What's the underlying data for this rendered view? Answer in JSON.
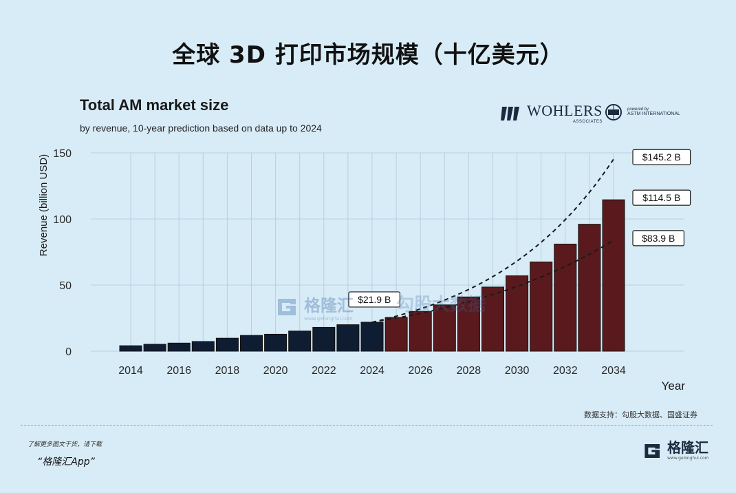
{
  "header": {
    "main_title": "全球 3D 打印市场规模（十亿美元）",
    "chart_title": "Total AM market size",
    "chart_subtitle": "by revenue, 10-year prediction based on data up to 2024"
  },
  "logos": {
    "wohlers_name": "WOHLERS",
    "wohlers_sub": "ASSOCIATES",
    "astm_powered": "powered by",
    "astm_name": "ASTM INTERNATIONAL"
  },
  "watermark": {
    "text": "格隆汇",
    "url": "www.gelonghui.com",
    "text2": "勾股大数据"
  },
  "source_text": "数据支持：勾股大数据、国盛证券",
  "footer": {
    "note": "了解更多图文干货，请下载",
    "app": "“格隆汇App”",
    "logo_name": "格隆汇",
    "logo_url": "www.gelonghui.com"
  },
  "colors": {
    "historical_bar": "#0f1d33",
    "forecast_bar": "#5a1a1d",
    "grid": "#b9cfdc",
    "background": "#d8ecf7"
  },
  "chart_data": {
    "type": "bar",
    "ylabel": "Revenue (billion USD)",
    "xlabel": "Year",
    "ylim": [
      0,
      150
    ],
    "yticks": [
      0,
      50,
      100,
      150
    ],
    "xticks": [
      "2014",
      "2016",
      "2018",
      "2020",
      "2022",
      "2024",
      "2026",
      "2028",
      "2030",
      "2032",
      "2034"
    ],
    "grid": true,
    "categories": [
      "2014",
      "2015",
      "2016",
      "2017",
      "2018",
      "2019",
      "2020",
      "2021",
      "2022",
      "2023",
      "2024",
      "2025",
      "2026",
      "2027",
      "2028",
      "2029",
      "2030",
      "2031",
      "2032",
      "2033",
      "2034"
    ],
    "series": [
      {
        "kind": "historical",
        "values": [
          4.1,
          5.2,
          6.1,
          7.3,
          9.8,
          11.9,
          12.8,
          15.2,
          18.0,
          20.0,
          21.9,
          null,
          null,
          null,
          null,
          null,
          null,
          null,
          null,
          null,
          null
        ]
      },
      {
        "kind": "forecast",
        "values": [
          null,
          null,
          null,
          null,
          null,
          null,
          null,
          null,
          null,
          null,
          null,
          25.5,
          30.0,
          35.0,
          41.0,
          48.5,
          57.0,
          67.5,
          81.0,
          96.0,
          114.5
        ]
      }
    ],
    "trend_lines": [
      {
        "kind": "upper",
        "from": [
          2024,
          21.9
        ],
        "to": [
          2034,
          145.2
        ]
      },
      {
        "kind": "lower",
        "from": [
          2024,
          21.9
        ],
        "to": [
          2034,
          83.9
        ]
      }
    ],
    "annotations": [
      {
        "text": "$21.9 B",
        "year": 2024,
        "value": 21.9
      },
      {
        "text": "$145.2 B",
        "year": 2034,
        "value": 145.2
      },
      {
        "text": "$114.5 B",
        "year": 2034,
        "value": 114.5
      },
      {
        "text": "$83.9 B",
        "year": 2034,
        "value": 83.9
      }
    ]
  }
}
